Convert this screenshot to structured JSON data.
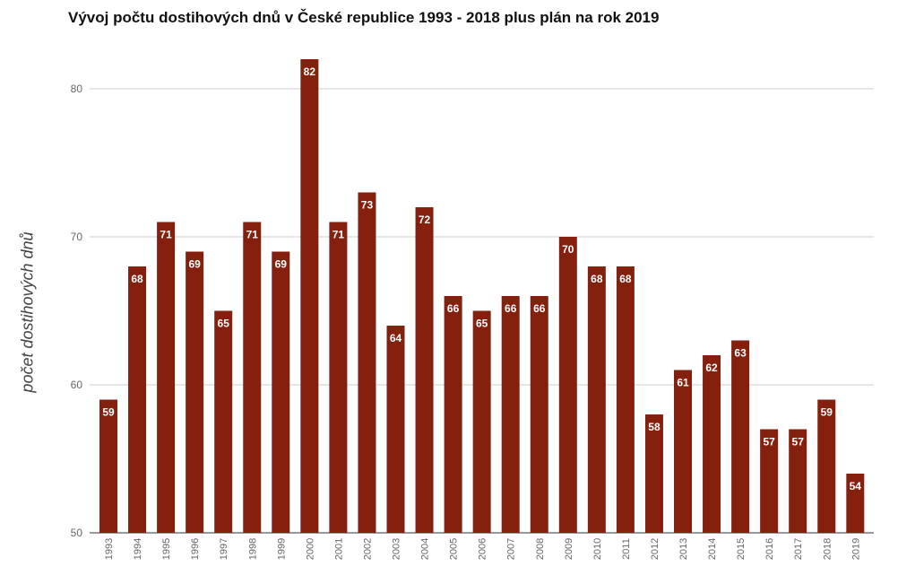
{
  "chart_data": {
    "type": "bar",
    "title": "Vývoj počtu dostihových dnů v České republice 1993 - 2018 plus plán na rok 2019",
    "xlabel": "",
    "ylabel": "počet dostihových dnů",
    "ylim": [
      50,
      82
    ],
    "yticks": [
      "50",
      "60",
      "70",
      "80"
    ],
    "grid": true,
    "color": "#86200e",
    "categories": [
      "1993",
      "1994",
      "1995",
      "1996",
      "1997",
      "1998",
      "1999",
      "2000",
      "2001",
      "2002",
      "2003",
      "2004",
      "2005",
      "2006",
      "2007",
      "2008",
      "2009",
      "2010",
      "2011",
      "2012",
      "2013",
      "2014",
      "2015",
      "2016",
      "2017",
      "2018",
      "2019"
    ],
    "values": [
      59,
      68,
      71,
      69,
      65,
      71,
      69,
      82,
      71,
      73,
      64,
      72,
      66,
      65,
      66,
      66,
      70,
      68,
      68,
      58,
      61,
      62,
      63,
      57,
      57,
      59,
      54
    ]
  }
}
